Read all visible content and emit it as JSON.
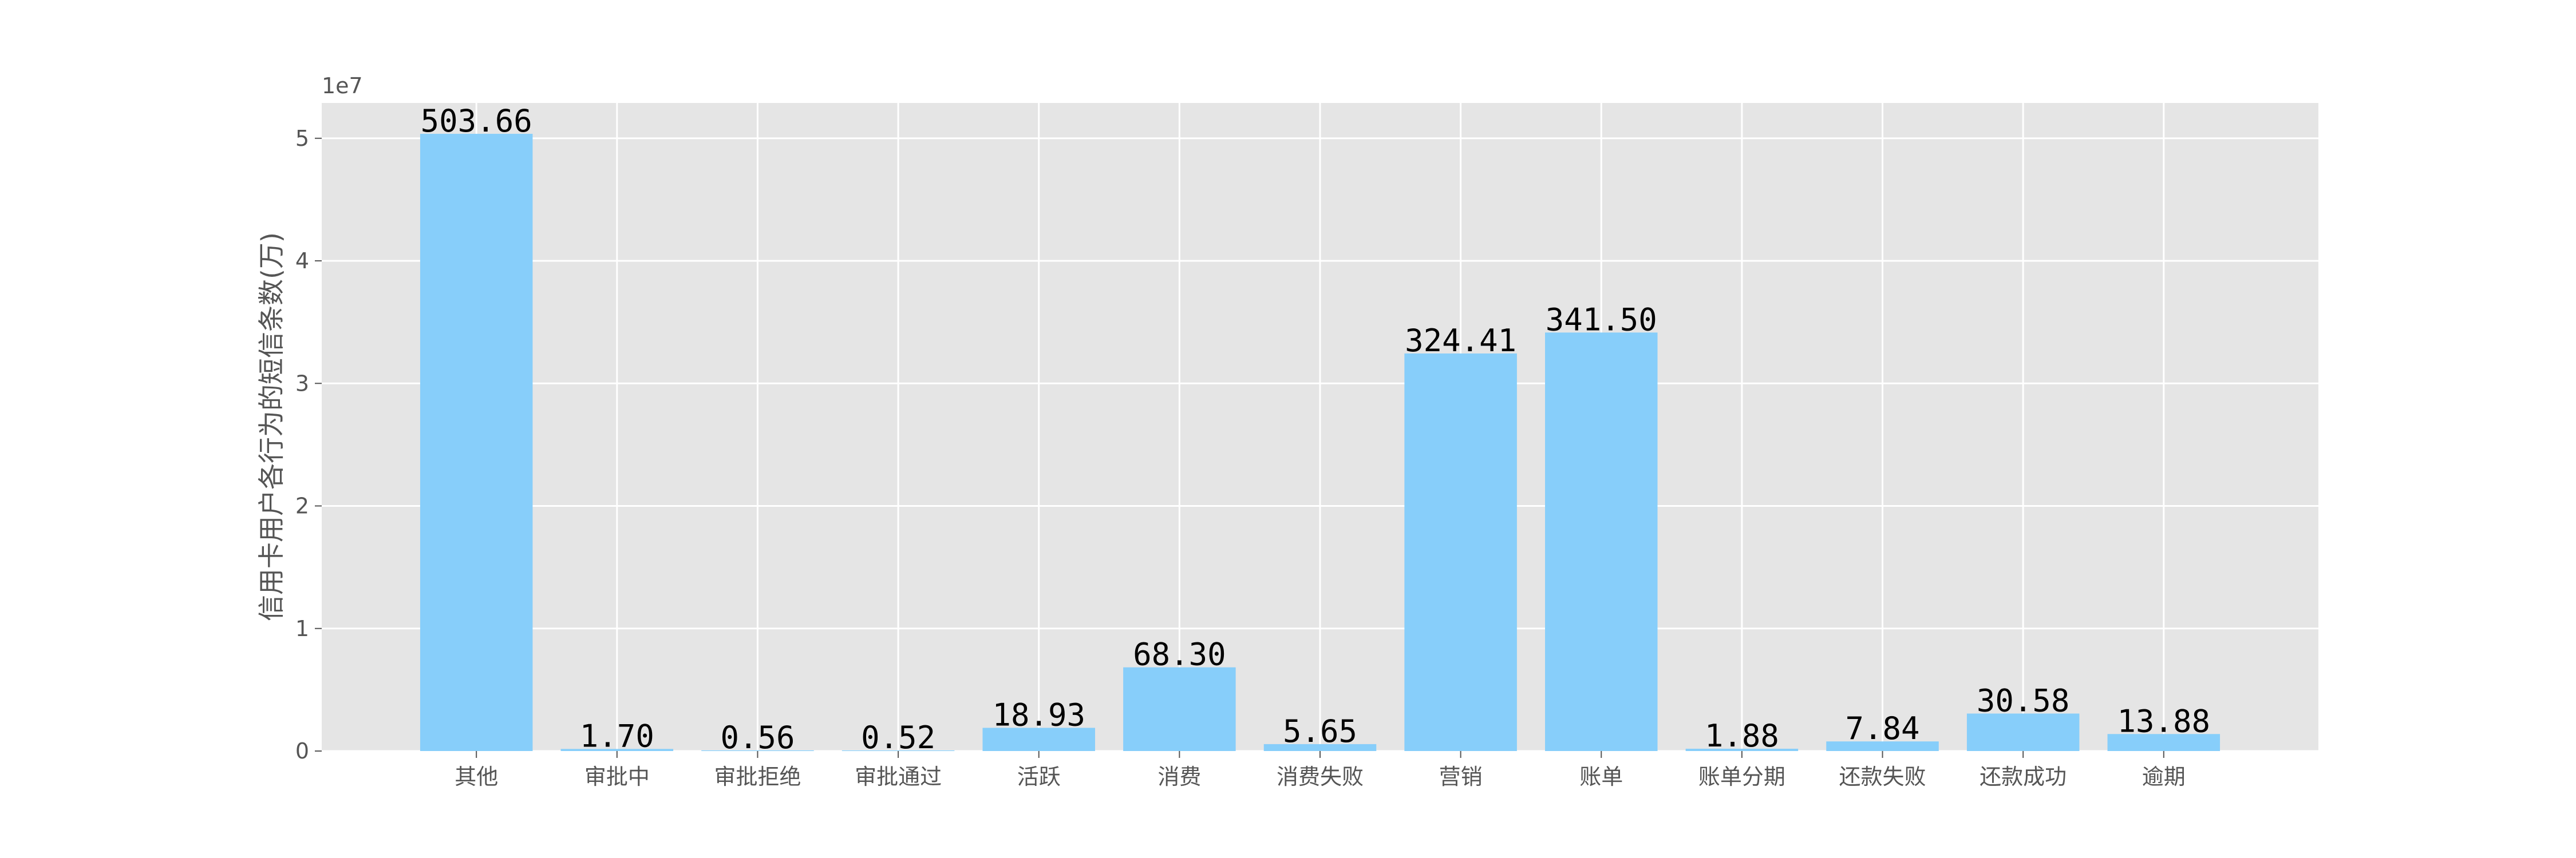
{
  "chart_data": {
    "type": "bar",
    "categories": [
      "其他",
      "审批中",
      "审批拒绝",
      "审批通过",
      "活跃",
      "消费",
      "消费失败",
      "营销",
      "账单",
      "账单分期",
      "还款失败",
      "还款成功",
      "逾期"
    ],
    "values": [
      50366000,
      170000,
      56000,
      52000,
      1893000,
      6830000,
      565000,
      32441000,
      34150000,
      188000,
      784000,
      3058000,
      1388000
    ],
    "data_labels": [
      "503.66",
      "1.70",
      "0.56",
      "0.52",
      "18.93",
      "68.30",
      "5.65",
      "324.41",
      "341.50",
      "1.88",
      "7.84",
      "30.58",
      "13.88"
    ],
    "xlabel": "",
    "ylabel": "信用卡用户各行为的短信条数(万)",
    "y_offset_label": "1e7",
    "y_ticks": [
      0,
      1,
      2,
      3,
      4,
      5
    ],
    "y_tick_scale": 10000000,
    "ylim": [
      0,
      52883000
    ],
    "grid": true,
    "colors": {
      "bar": "#87CEFA",
      "background": "#E5E5E5",
      "grid": "#FFFFFF",
      "tick": "#555555"
    }
  }
}
